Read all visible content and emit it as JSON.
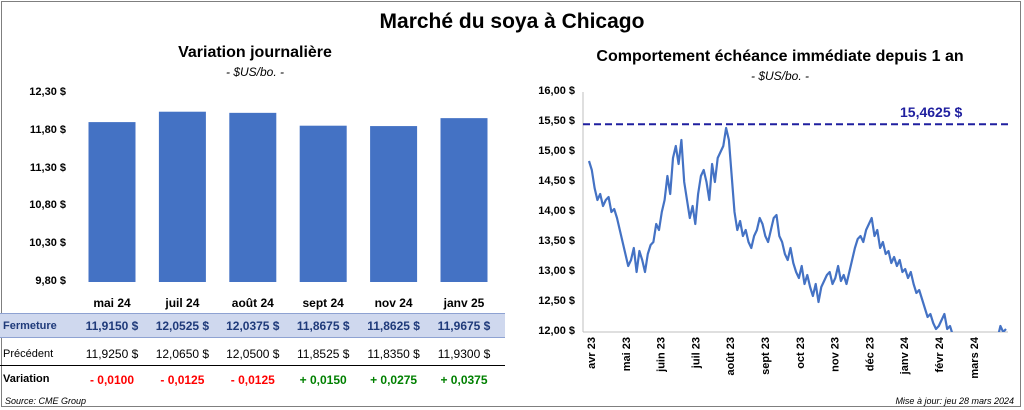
{
  "title": "Marché du soya à Chicago",
  "chart_data": [
    {
      "type": "bar",
      "title": "Variation journalière",
      "subtitle": "- $US/bo. -",
      "categories": [
        "mai 24",
        "juil 24",
        "août 24",
        "sept 24",
        "nov 24",
        "janv 25"
      ],
      "values": [
        11.915,
        12.0525,
        12.0375,
        11.8675,
        11.8625,
        11.9675
      ],
      "ylim": [
        9.8,
        12.3
      ],
      "yticks": [
        "9,80 $",
        "10,30 $",
        "10,80 $",
        "11,30 $",
        "11,80 $",
        "12,30 $"
      ],
      "color": "#4472c4",
      "table": {
        "rows": [
          {
            "label": "Fermeture",
            "values": [
              "11,9150  $",
              "12,0525  $",
              "12,0375  $",
              "11,8675  $",
              "11,8625  $",
              "11,9675  $"
            ]
          },
          {
            "label": "Précédent",
            "values": [
              "11,9250  $",
              "12,0650  $",
              "12,0500  $",
              "11,8525  $",
              "11,8350  $",
              "11,9300  $"
            ]
          },
          {
            "label": "Variation",
            "values": [
              "- 0,0100",
              "- 0,0125",
              "- 0,0125",
              "+ 0,0150",
              "+ 0,0275",
              "+ 0,0375"
            ]
          }
        ],
        "variation_colors": [
          "#ff0000",
          "#ff0000",
          "#ff0000",
          "#008000",
          "#008000",
          "#008000"
        ]
      }
    },
    {
      "type": "line",
      "title": "Comportement  échéance immédiate depuis 1 an",
      "subtitle": "- $US/bo. -",
      "ylim": [
        12.0,
        16.0
      ],
      "yticks": [
        "12,00 $",
        "12,50 $",
        "13,00 $",
        "13,50 $",
        "14,00 $",
        "14,50 $",
        "15,00 $",
        "15,50 $",
        "16,00 $"
      ],
      "xticks": [
        "avr 23",
        "mai 23",
        "juin 23",
        "juil 23",
        "août 23",
        "sept 23",
        "oct 23",
        "nov 23",
        "déc 23",
        "janv 24",
        "févr 24",
        "mars 24"
      ],
      "peak_label": "15,4625  $",
      "peak_value": 15.4625,
      "series_color": "#4472c4",
      "peak_color": "#1f1f9f",
      "values": [
        14.85,
        14.7,
        14.4,
        14.2,
        14.3,
        14.1,
        14.2,
        14.25,
        14.0,
        14.05,
        13.9,
        13.7,
        13.5,
        13.3,
        13.1,
        13.2,
        13.4,
        13.0,
        13.35,
        13.2,
        13.0,
        13.3,
        13.45,
        13.5,
        13.8,
        13.7,
        14.0,
        14.2,
        14.6,
        14.3,
        14.9,
        15.1,
        14.8,
        15.2,
        14.5,
        14.2,
        13.9,
        14.1,
        13.8,
        14.3,
        14.6,
        14.7,
        14.5,
        14.2,
        14.8,
        14.5,
        14.9,
        15.0,
        15.1,
        15.4,
        15.2,
        14.6,
        14.0,
        13.7,
        13.85,
        13.6,
        13.7,
        13.5,
        13.4,
        13.6,
        13.7,
        13.9,
        13.8,
        13.6,
        13.5,
        13.7,
        13.9,
        13.95,
        13.6,
        13.5,
        13.3,
        13.2,
        13.4,
        13.15,
        13.0,
        12.9,
        13.1,
        12.8,
        12.95,
        12.75,
        12.6,
        12.8,
        12.5,
        12.75,
        12.85,
        12.95,
        13.0,
        12.8,
        12.9,
        13.1,
        12.85,
        12.95,
        12.8,
        13.0,
        13.2,
        13.4,
        13.55,
        13.6,
        13.5,
        13.7,
        13.8,
        13.9,
        13.6,
        13.7,
        13.4,
        13.5,
        13.3,
        13.35,
        13.15,
        13.25,
        13.1,
        13.2,
        13.0,
        13.05,
        12.9,
        13.0,
        12.8,
        12.65,
        12.7,
        12.55,
        12.4,
        12.25,
        12.3,
        12.15,
        12.05,
        12.1,
        12.2,
        12.3,
        12.05,
        12.1,
        11.95,
        11.9,
        11.85,
        11.8,
        11.9,
        11.85,
        11.75,
        11.8,
        11.9,
        11.85,
        11.95,
        11.9,
        11.85,
        11.8,
        11.9,
        11.95,
        11.9,
        12.1,
        12.0,
        12.05
      ]
    }
  ],
  "footer": {
    "source": "Source: CME Group",
    "updated": "Mise à jour: jeu 28 mars 2024"
  }
}
